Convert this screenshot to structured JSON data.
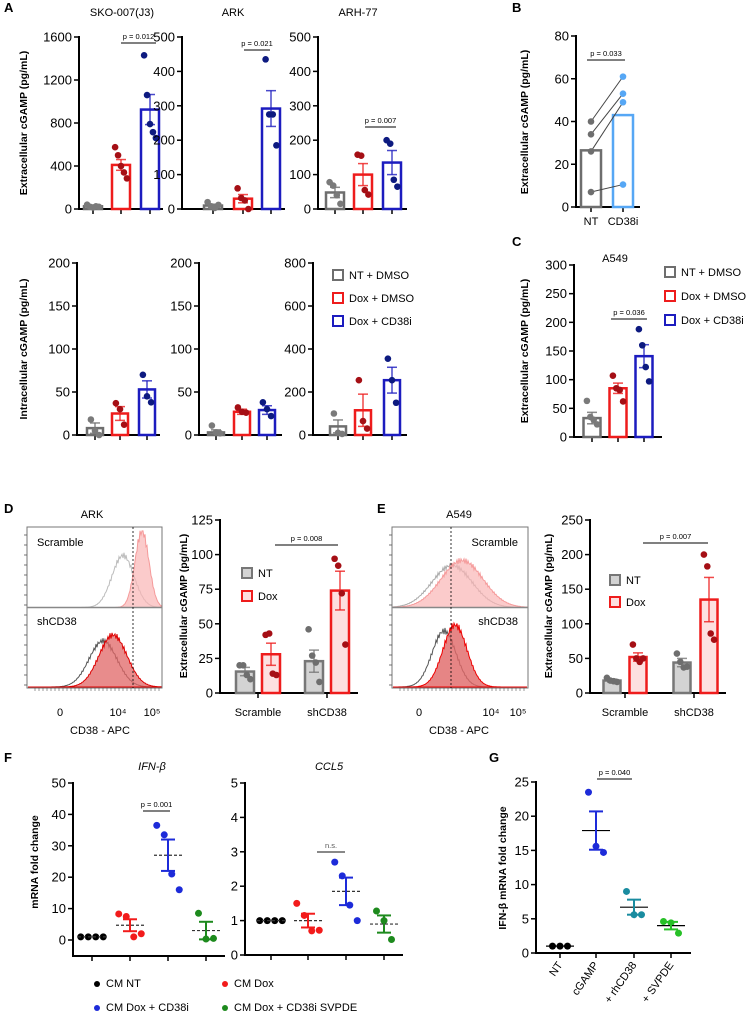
{
  "panels": {
    "A": "A",
    "B": "B",
    "C": "C",
    "D": "D",
    "E": "E",
    "F": "F",
    "G": "G"
  },
  "colors": {
    "gray_bar": "#6e6e6e",
    "gray_point": "#7a7a7a",
    "red_bar": "#ee1c1c",
    "red_point": "#a50f15",
    "blue_bar": "#1c1cbf",
    "blue_point": "#0d1a80",
    "light_blue": "#56a7f5",
    "nt_fill": "#d3d3d3",
    "dox_fill": "#fde0e0",
    "f_black": "#000000",
    "f_red": "#f21b1b",
    "f_blue": "#1d2bd9",
    "f_green": "#1d8a1d",
    "g_teal": "#1a8ca0",
    "g_green": "#27c027"
  },
  "legend_A": [
    {
      "label": "NT + DMSO",
      "color": "#6e6e6e"
    },
    {
      "label": "Dox + DMSO",
      "color": "#ee1c1c"
    },
    {
      "label": "Dox + CD38i",
      "color": "#1c1cbf"
    }
  ],
  "legend_C": [
    {
      "label": "NT + DMSO",
      "color": "#6e6e6e"
    },
    {
      "label": "Dox + DMSO",
      "color": "#ee1c1c"
    },
    {
      "label": "Dox + CD38i",
      "color": "#1c1cbf"
    }
  ],
  "legend_DE": [
    {
      "label": "NT",
      "color": "#777777",
      "fill": "#d3d3d3"
    },
    {
      "label": "Dox",
      "color": "#ee1c1c",
      "fill": "#fde0e0"
    }
  ],
  "legend_F": [
    {
      "label": "CM NT",
      "color": "#000000"
    },
    {
      "label": "CM Dox",
      "color": "#f21b1b"
    },
    {
      "label": "CM Dox + CD38i",
      "color": "#1d2bd9"
    },
    {
      "label": "CM Dox + CD38i SVPDE",
      "color": "#1d8a1d"
    }
  ],
  "flow": {
    "D": {
      "title": "ARK",
      "top_label": "Scramble",
      "bottom_label": "shCD38",
      "xticks": [
        "0",
        "10⁴",
        "10⁵"
      ],
      "xlabel": "CD38 - APC"
    },
    "E": {
      "title": "A549",
      "top_label": "Scramble",
      "bottom_label": "shCD38",
      "xticks": [
        "0",
        "10⁴",
        "10⁵"
      ],
      "xlabel": "CD38 - APC"
    }
  },
  "chart_data": [
    {
      "id": "A_ext_sko",
      "type": "bar",
      "title": "SKO-007(J3)",
      "ylabel": "Extracellular cGAMP (pg/mL)",
      "ylim": [
        0,
        1600
      ],
      "yticks": [
        0,
        400,
        800,
        1200,
        1600
      ],
      "groups": [
        {
          "name": "NT + DMSO",
          "mean": 25,
          "sem": 5,
          "points": [
            40,
            20,
            15,
            25,
            20
          ],
          "stroke": "#6e6e6e",
          "point": "#7a7a7a"
        },
        {
          "name": "Dox + DMSO",
          "mean": 410,
          "sem": 50,
          "points": [
            575,
            500,
            400,
            340,
            285
          ],
          "stroke": "#ee1c1c",
          "point": "#a50f15"
        },
        {
          "name": "Dox + CD38i",
          "mean": 925,
          "sem": 140,
          "points": [
            1430,
            1060,
            790,
            715,
            660
          ],
          "stroke": "#1c1cbf",
          "point": "#0d1a80"
        }
      ],
      "annotations": [
        {
          "text": "p = 0.012",
          "groups": [
            1,
            2
          ]
        }
      ]
    },
    {
      "id": "A_ext_ark",
      "type": "bar",
      "title": "ARK",
      "ylim": [
        0,
        500
      ],
      "yticks": [
        0,
        100,
        200,
        300,
        400,
        500
      ],
      "groups": [
        {
          "name": "NT + DMSO",
          "mean": 10,
          "sem": 4,
          "points": [
            20,
            8,
            3,
            12
          ],
          "stroke": "#6e6e6e",
          "point": "#7a7a7a"
        },
        {
          "name": "Dox + DMSO",
          "mean": 30,
          "sem": 12,
          "points": [
            60,
            32,
            25,
            0
          ],
          "stroke": "#ee1c1c",
          "point": "#a50f15"
        },
        {
          "name": "Dox + CD38i",
          "mean": 292,
          "sem": 52,
          "points": [
            435,
            275,
            275,
            185
          ],
          "stroke": "#1c1cbf",
          "point": "#0d1a80"
        }
      ],
      "annotations": [
        {
          "text": "p = 0.021",
          "groups": [
            1,
            2
          ]
        }
      ]
    },
    {
      "id": "A_ext_arh",
      "type": "bar",
      "title": "ARH-77",
      "ylim": [
        0,
        500
      ],
      "yticks": [
        0,
        100,
        200,
        300,
        400,
        500
      ],
      "groups": [
        {
          "name": "NT + DMSO",
          "mean": 48,
          "sem": 15,
          "points": [
            78,
            68,
            40,
            15
          ],
          "stroke": "#6e6e6e",
          "point": "#7a7a7a"
        },
        {
          "name": "Dox + DMSO",
          "mean": 100,
          "sem": 32,
          "points": [
            158,
            155,
            55,
            42
          ],
          "stroke": "#ee1c1c",
          "point": "#a50f15"
        },
        {
          "name": "Dox + CD38i",
          "mean": 135,
          "sem": 35,
          "points": [
            200,
            190,
            85,
            65
          ],
          "stroke": "#1c1cbf",
          "point": "#0d1a80"
        }
      ],
      "annotations": [
        {
          "text": "p = 0.007",
          "groups": [
            1,
            2
          ]
        }
      ]
    },
    {
      "id": "A_int_sko",
      "type": "bar",
      "ylabel": "Intracellular cGAMP (pg/mL)",
      "ylim": [
        0,
        200
      ],
      "yticks": [
        0,
        50,
        100,
        150,
        200
      ],
      "groups": [
        {
          "name": "NT + DMSO",
          "mean": 8,
          "sem": 6,
          "points": [
            18,
            5,
            0
          ],
          "stroke": "#6e6e6e",
          "point": "#7a7a7a"
        },
        {
          "name": "Dox + DMSO",
          "mean": 25,
          "sem": 8,
          "points": [
            37,
            30,
            12
          ],
          "stroke": "#ee1c1c",
          "point": "#a50f15"
        },
        {
          "name": "Dox + CD38i",
          "mean": 53,
          "sem": 10,
          "points": [
            70,
            45,
            38
          ],
          "stroke": "#1c1cbf",
          "point": "#0d1a80"
        }
      ]
    },
    {
      "id": "A_int_ark",
      "type": "bar",
      "ylim": [
        0,
        200
      ],
      "yticks": [
        0,
        50,
        100,
        150,
        200
      ],
      "groups": [
        {
          "name": "NT + DMSO",
          "mean": 3,
          "sem": 3,
          "points": [
            11,
            3,
            2
          ],
          "stroke": "#6e6e6e",
          "point": "#7a7a7a"
        },
        {
          "name": "Dox + DMSO",
          "mean": 27,
          "sem": 3,
          "points": [
            32,
            27,
            26
          ],
          "stroke": "#ee1c1c",
          "point": "#a50f15"
        },
        {
          "name": "Dox + CD38i",
          "mean": 29,
          "sem": 5,
          "points": [
            38,
            30,
            22
          ],
          "stroke": "#1c1cbf",
          "point": "#0d1a80"
        }
      ]
    },
    {
      "id": "A_int_arh",
      "type": "bar",
      "ylim": [
        0,
        800
      ],
      "yticks": [
        0,
        200,
        400,
        600,
        800
      ],
      "groups": [
        {
          "name": "NT + DMSO",
          "mean": 40,
          "sem": 30,
          "points": [
            100,
            10,
            5
          ],
          "stroke": "#6e6e6e",
          "point": "#7a7a7a"
        },
        {
          "name": "Dox + DMSO",
          "mean": 115,
          "sem": 75,
          "points": [
            255,
            65,
            30
          ],
          "stroke": "#ee1c1c",
          "point": "#a50f15"
        },
        {
          "name": "Dox + CD38i",
          "mean": 255,
          "sem": 60,
          "points": [
            355,
            255,
            150
          ],
          "stroke": "#1c1cbf",
          "point": "#0d1a80"
        }
      ]
    },
    {
      "id": "B",
      "type": "bar",
      "ylabel": "Extracellular cGAMP (pg/mL)",
      "ylim": [
        0,
        80
      ],
      "yticks": [
        0,
        20,
        40,
        60,
        80
      ],
      "categories": [
        "NT",
        "CD38i"
      ],
      "paired": true,
      "groups": [
        {
          "name": "NT",
          "mean": 26.5,
          "points": [
            40,
            34,
            26,
            7
          ],
          "stroke": "#6e6e6e",
          "point": "#6e6e6e"
        },
        {
          "name": "CD38i",
          "mean": 43,
          "points": [
            61,
            53,
            49,
            10.5
          ],
          "stroke": "#56a7f5",
          "point": "#56a7f5"
        }
      ],
      "annotations": [
        {
          "text": "p = 0.033",
          "groups": [
            0,
            1
          ]
        }
      ]
    },
    {
      "id": "C",
      "type": "bar",
      "title": "A549",
      "ylabel": "Extracellular cGAMP (pg/mL)",
      "ylim": [
        0,
        300
      ],
      "yticks": [
        0,
        50,
        100,
        150,
        200,
        250,
        300
      ],
      "groups": [
        {
          "name": "NT + DMSO",
          "mean": 33,
          "sem": 10,
          "points": [
            63,
            35,
            30,
            22
          ],
          "stroke": "#6e6e6e",
          "point": "#7a7a7a"
        },
        {
          "name": "Dox + DMSO",
          "mean": 85,
          "sem": 9,
          "points": [
            107,
            85,
            82,
            62
          ],
          "stroke": "#ee1c1c",
          "point": "#a50f15"
        },
        {
          "name": "Dox + CD38i",
          "mean": 141,
          "sem": 20,
          "points": [
            188,
            160,
            122,
            97
          ],
          "stroke": "#1c1cbf",
          "point": "#0d1a80"
        }
      ],
      "annotations": [
        {
          "text": "p = 0.036",
          "groups": [
            1,
            2
          ]
        }
      ]
    },
    {
      "id": "D",
      "type": "grouped_bar",
      "ylabel": "Extracellular cGAMP (pg/mL)",
      "ylim": [
        0,
        125
      ],
      "yticks": [
        0,
        25,
        50,
        75,
        100,
        125
      ],
      "categories": [
        "Scramble",
        "shCD38"
      ],
      "groups": [
        {
          "name": "NT",
          "category": "Scramble",
          "mean": 15.5,
          "sem": 3,
          "points": [
            20,
            20,
            13,
            10
          ],
          "stroke": "#777777",
          "fill": "#d3d3d3",
          "point": "#6e6e6e"
        },
        {
          "name": "Dox",
          "category": "Scramble",
          "mean": 28,
          "sem": 8,
          "points": [
            42,
            43,
            14,
            13
          ],
          "stroke": "#ee1c1c",
          "fill": "#fde0e0",
          "point": "#a50f15"
        },
        {
          "name": "NT",
          "category": "shCD38",
          "mean": 23,
          "sem": 8,
          "points": [
            46,
            27,
            22,
            8
          ],
          "stroke": "#777777",
          "fill": "#d3d3d3",
          "point": "#6e6e6e"
        },
        {
          "name": "Dox",
          "category": "shCD38",
          "mean": 74,
          "sem": 14,
          "points": [
            97,
            92,
            72,
            35
          ],
          "stroke": "#ee1c1c",
          "fill": "#fde0e0",
          "point": "#a50f15"
        }
      ],
      "annotations": [
        {
          "text": "p = 0.008",
          "groups": [
            1,
            3
          ]
        }
      ]
    },
    {
      "id": "E",
      "type": "grouped_bar",
      "ylabel": "Extracellular cGAMP (pg/mL)",
      "ylim": [
        0,
        250
      ],
      "yticks": [
        0,
        50,
        100,
        150,
        200,
        250
      ],
      "categories": [
        "Scramble",
        "shCD38"
      ],
      "groups": [
        {
          "name": "NT",
          "category": "Scramble",
          "mean": 18,
          "sem": 2,
          "points": [
            22,
            18,
            17,
            16
          ],
          "stroke": "#777777",
          "fill": "#d3d3d3",
          "point": "#6e6e6e"
        },
        {
          "name": "Dox",
          "category": "Scramble",
          "mean": 52,
          "sem": 6,
          "points": [
            70,
            50,
            45,
            50
          ],
          "stroke": "#ee1c1c",
          "fill": "#fde0e0",
          "point": "#a50f15"
        },
        {
          "name": "NT",
          "category": "shCD38",
          "mean": 44,
          "sem": 6,
          "points": [
            57,
            45,
            37,
            38
          ],
          "stroke": "#777777",
          "fill": "#d3d3d3",
          "point": "#6e6e6e"
        },
        {
          "name": "Dox",
          "category": "shCD38",
          "mean": 135,
          "sem": 32,
          "points": [
            200,
            183,
            86,
            77
          ],
          "stroke": "#ee1c1c",
          "fill": "#fde0e0",
          "point": "#a50f15"
        }
      ],
      "annotations": [
        {
          "text": "p = 0.007",
          "groups": [
            1,
            3
          ]
        }
      ]
    },
    {
      "id": "F_ifnb",
      "type": "scatter",
      "title": "IFN-β",
      "ylabel": "mRNA fold change",
      "ylim": [
        0,
        50
      ],
      "yticks": [
        0,
        10,
        20,
        30,
        40,
        50
      ],
      "mean_line": "dashed",
      "groups": [
        {
          "name": "CM NT",
          "mean": 1,
          "sem": 0,
          "points": [
            1,
            1,
            1,
            1
          ],
          "color": "#000000"
        },
        {
          "name": "CM Dox",
          "mean": 4.7,
          "sem": 1.9,
          "points": [
            8.3,
            7.5,
            1,
            2
          ],
          "color": "#f21b1b"
        },
        {
          "name": "CM Dox + CD38i",
          "mean": 27,
          "sem": 5,
          "points": [
            36.5,
            33.5,
            21,
            16
          ],
          "color": "#1d2bd9"
        },
        {
          "name": "CM Dox + CD38i SVPDE",
          "mean": 3,
          "sem": 2.8,
          "points": [
            8.5,
            0.3,
            0.5
          ],
          "color": "#1d8a1d"
        }
      ],
      "annotations": [
        {
          "text": "p = 0.001",
          "groups": [
            1,
            2
          ]
        }
      ]
    },
    {
      "id": "F_ccl5",
      "type": "scatter",
      "title": "CCL5",
      "ylim": [
        0,
        5
      ],
      "yticks": [
        0,
        1,
        2,
        3,
        4,
        5
      ],
      "mean_line": "dashed",
      "groups": [
        {
          "name": "CM NT",
          "mean": 1,
          "sem": 0,
          "points": [
            1,
            1,
            1,
            1
          ],
          "color": "#000000"
        },
        {
          "name": "CM Dox",
          "mean": 1.0,
          "sem": 0.2,
          "points": [
            1.5,
            1.15,
            0.7,
            0.72
          ],
          "color": "#f21b1b"
        },
        {
          "name": "CM Dox + CD38i",
          "mean": 1.85,
          "sem": 0.4,
          "points": [
            2.7,
            2.3,
            1.45,
            1.0
          ],
          "color": "#1d2bd9"
        },
        {
          "name": "CM Dox + CD38i SVPDE",
          "mean": 0.9,
          "sem": 0.25,
          "points": [
            1.28,
            1.0,
            0.45
          ],
          "color": "#1d8a1d"
        }
      ],
      "annotations": [
        {
          "text": "n.s.",
          "groups": [
            1,
            2
          ],
          "color": "#888888"
        }
      ]
    },
    {
      "id": "G",
      "type": "scatter",
      "ylabel": "IFN-β mRNA fold change",
      "ylim": [
        0,
        25
      ],
      "yticks": [
        0,
        5,
        10,
        15,
        20,
        25
      ],
      "mean_line": "solid",
      "categories": [
        "NT",
        "cGAMP",
        "+ rhCD38",
        "+ SVPDE"
      ],
      "groups": [
        {
          "name": "NT",
          "mean": 1,
          "sem": 0,
          "points": [
            1,
            1,
            1
          ],
          "color": "#000000"
        },
        {
          "name": "cGAMP",
          "mean": 17.9,
          "sem": 2.8,
          "points": [
            23.5,
            15.6,
            14.7
          ],
          "color": "#1d2bd9"
        },
        {
          "name": "+ rhCD38",
          "mean": 6.7,
          "sem": 1.1,
          "points": [
            9,
            5.6,
            5.6
          ],
          "color": "#1a8ca0"
        },
        {
          "name": "+ SVPDE",
          "mean": 4,
          "sem": 0.55,
          "points": [
            4.6,
            4.4,
            2.9
          ],
          "color": "#27c027"
        }
      ],
      "annotations": [
        {
          "text": "p = 0.040",
          "groups": [
            1,
            2
          ]
        }
      ]
    }
  ]
}
